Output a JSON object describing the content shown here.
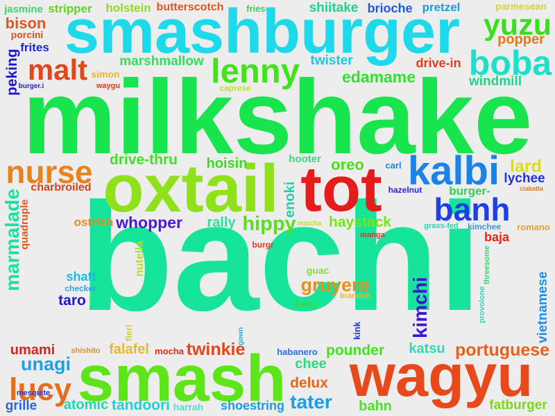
{
  "words": [
    {
      "text": "bachi",
      "color": "#16e49a",
      "orientation": "horizontal"
    },
    {
      "text": "milkshake",
      "color": "#18e44e",
      "orientation": "horizontal"
    },
    {
      "text": "smashburger",
      "color": "#1dd9ea",
      "orientation": "horizontal"
    },
    {
      "text": "oxtail",
      "color": "#8fe11c",
      "orientation": "horizontal"
    },
    {
      "text": "tot",
      "color": "#e61b1b",
      "orientation": "horizontal"
    },
    {
      "text": "wagyu",
      "color": "#e8491a",
      "orientation": "horizontal"
    },
    {
      "text": "smash",
      "color": "#5de51a",
      "orientation": "horizontal"
    },
    {
      "text": "kalbi",
      "color": "#1b82e8",
      "orientation": "horizontal"
    },
    {
      "text": "banh",
      "color": "#1f3ee6",
      "orientation": "horizontal"
    },
    {
      "text": "lenny",
      "color": "#3fe41a",
      "orientation": "horizontal"
    },
    {
      "text": "malt",
      "color": "#e4451b",
      "orientation": "horizontal"
    },
    {
      "text": "nurse",
      "color": "#e6841c",
      "orientation": "horizontal"
    },
    {
      "text": "boba",
      "color": "#1ce0c9",
      "orientation": "horizontal"
    },
    {
      "text": "yuzu",
      "color": "#3cdd21",
      "orientation": "horizontal"
    },
    {
      "text": "lucy",
      "color": "#e66d19",
      "orientation": "horizontal"
    },
    {
      "text": "edamame",
      "color": "#2ee42a",
      "orientation": "horizontal"
    },
    {
      "text": "whopper",
      "color": "#4b18d8",
      "orientation": "horizontal"
    },
    {
      "text": "hippy",
      "color": "#57e01b",
      "orientation": "horizontal"
    },
    {
      "text": "haystack",
      "color": "#78e41c",
      "orientation": "horizontal"
    },
    {
      "text": "gruyere",
      "color": "#e6901c",
      "orientation": "horizontal"
    },
    {
      "text": "marmalade",
      "color": "#1be0a3",
      "orientation": "vertical"
    },
    {
      "text": "twinkie",
      "color": "#e4451a",
      "orientation": "horizontal"
    },
    {
      "text": "unagi",
      "color": "#1ba1e6",
      "orientation": "horizontal"
    },
    {
      "text": "portuguese",
      "color": "#e6611a",
      "orientation": "horizontal"
    },
    {
      "text": "vietnamese",
      "color": "#1e8ee4",
      "orientation": "vertical"
    },
    {
      "text": "kimchi",
      "color": "#3a15d6",
      "orientation": "vertical"
    },
    {
      "text": "tater",
      "color": "#1b9ee6",
      "orientation": "horizontal"
    },
    {
      "text": "delux",
      "color": "#e66619",
      "orientation": "horizontal"
    },
    {
      "text": "pounder",
      "color": "#41e21c",
      "orientation": "horizontal"
    },
    {
      "text": "drive-thru",
      "color": "#3ee02a",
      "orientation": "horizontal"
    },
    {
      "text": "windmill",
      "color": "#22d486",
      "orientation": "horizontal"
    },
    {
      "text": "marshmallow",
      "color": "#2ee05a",
      "orientation": "horizontal"
    },
    {
      "text": "drive-in",
      "color": "#e63a1a",
      "orientation": "horizontal"
    },
    {
      "text": "twister",
      "color": "#1bc7d8",
      "orientation": "horizontal"
    },
    {
      "text": "popper",
      "color": "#e8761b",
      "orientation": "horizontal"
    },
    {
      "text": "bison",
      "color": "#e4541b",
      "orientation": "horizontal"
    },
    {
      "text": "frites",
      "color": "#2025d8",
      "orientation": "horizontal"
    },
    {
      "text": "peking",
      "color": "#2514c9",
      "orientation": "vertical"
    },
    {
      "text": "jasmine",
      "color": "#37d86a",
      "orientation": "horizontal"
    },
    {
      "text": "stripper",
      "color": "#5ad71d",
      "orientation": "horizontal"
    },
    {
      "text": "holstein",
      "color": "#93d62a",
      "orientation": "horizontal"
    },
    {
      "text": "butterscotch",
      "color": "#e6521a",
      "orientation": "horizontal"
    },
    {
      "text": "fries-",
      "color": "#2bd65c",
      "orientation": "horizontal"
    },
    {
      "text": "shiitake",
      "color": "#1ed18c",
      "orientation": "horizontal"
    },
    {
      "text": "brioche",
      "color": "#1f59dc",
      "orientation": "horizontal"
    },
    {
      "text": "pretzel",
      "color": "#1e9bd8",
      "orientation": "horizontal"
    },
    {
      "text": "parmesean",
      "color": "#cfd82b",
      "orientation": "horizontal"
    },
    {
      "text": "porcini",
      "color": "#e6491d",
      "orientation": "horizontal"
    },
    {
      "text": "simon",
      "color": "#e9b620",
      "orientation": "horizontal"
    },
    {
      "text": "waygu",
      "color": "#e6381a",
      "orientation": "horizontal"
    },
    {
      "text": "burger.i",
      "color": "#2522cf",
      "orientation": "horizontal"
    },
    {
      "text": "caprese",
      "color": "#b9e02d",
      "orientation": "horizontal"
    },
    {
      "text": "lard",
      "color": "#d8de1c",
      "orientation": "horizontal"
    },
    {
      "text": "lychee",
      "color": "#2530d6",
      "orientation": "horizontal"
    },
    {
      "text": "oreo",
      "color": "#49dc1e",
      "orientation": "horizontal"
    },
    {
      "text": "hoisin",
      "color": "#3ed824",
      "orientation": "horizontal"
    },
    {
      "text": "hooter",
      "color": "#30dc7c",
      "orientation": "horizontal"
    },
    {
      "text": "carl",
      "color": "#1c86e0",
      "orientation": "horizontal"
    },
    {
      "text": "enoki",
      "color": "#26cfa6",
      "orientation": "vertical"
    },
    {
      "text": "hazelnut",
      "color": "#2623c7",
      "orientation": "horizontal"
    },
    {
      "text": "burger-",
      "color": "#2ad34e",
      "orientation": "horizontal"
    },
    {
      "text": "ciabatta",
      "color": "#e2782a",
      "orientation": "horizontal"
    },
    {
      "text": "charbroiled",
      "color": "#e03a1a",
      "orientation": "horizontal"
    },
    {
      "text": "quadruple",
      "color": "#e6551e",
      "orientation": "vertical"
    },
    {
      "text": "ostrich",
      "color": "#e88a21",
      "orientation": "horizontal"
    },
    {
      "text": "rally",
      "color": "#2ee09e",
      "orientation": "horizontal"
    },
    {
      "text": "matcha",
      "color": "#c1e02d",
      "orientation": "horizontal"
    },
    {
      "text": "grass-fed",
      "color": "#22d7b8",
      "orientation": "horizontal"
    },
    {
      "text": "kimchee",
      "color": "#2ba0d3",
      "orientation": "horizontal"
    },
    {
      "text": "romano",
      "color": "#e8a031",
      "orientation": "horizontal"
    },
    {
      "text": "manga",
      "color": "#e1342a",
      "orientation": "horizontal"
    },
    {
      "text": "baja",
      "color": "#e6241b",
      "orientation": "horizontal"
    },
    {
      "text": "burgr",
      "color": "#e4371c",
      "orientation": "horizontal"
    },
    {
      "text": "nutella",
      "color": "#b1de2a",
      "orientation": "vertical"
    },
    {
      "text": "shaft",
      "color": "#1ebbe0",
      "orientation": "horizontal"
    },
    {
      "text": "checker",
      "color": "#2ba3e6",
      "orientation": "horizontal"
    },
    {
      "text": "taro",
      "color": "#2219c7",
      "orientation": "horizontal"
    },
    {
      "text": "guac",
      "color": "#8bd83a",
      "orientation": "horizontal"
    },
    {
      "text": "brandon",
      "color": "#e8b636",
      "orientation": "horizontal"
    },
    {
      "text": "kerry",
      "color": "#4cd42a",
      "orientation": "horizontal"
    },
    {
      "text": "provolone",
      "color": "#36d6b2",
      "orientation": "vertical"
    },
    {
      "text": "threesome",
      "color": "#38d46c",
      "orientation": "vertical"
    },
    {
      "text": "fieri",
      "color": "#d6cf34",
      "orientation": "vertical"
    },
    {
      "text": "gown",
      "color": "#2fa8e0",
      "orientation": "vertical"
    },
    {
      "text": "kink",
      "color": "#2434c6",
      "orientation": "vertical"
    },
    {
      "text": "umami",
      "color": "#e01f1a",
      "orientation": "horizontal"
    },
    {
      "text": "shishito",
      "color": "#e98c27",
      "orientation": "horizontal"
    },
    {
      "text": "falafel",
      "color": "#e8b830",
      "orientation": "horizontal"
    },
    {
      "text": "mocha",
      "color": "#e3251b",
      "orientation": "horizontal"
    },
    {
      "text": "habanero",
      "color": "#2a6fe0",
      "orientation": "horizontal"
    },
    {
      "text": "chee",
      "color": "#2fd884",
      "orientation": "horizontal"
    },
    {
      "text": "katsu",
      "color": "#2ed8b4",
      "orientation": "horizontal"
    },
    {
      "text": "mesquite",
      "color": "#2a35cf",
      "orientation": "horizontal"
    },
    {
      "text": "grille",
      "color": "#2b63da",
      "orientation": "horizontal"
    },
    {
      "text": "atomic",
      "color": "#22d6b4",
      "orientation": "horizontal"
    },
    {
      "text": "tandoori",
      "color": "#21cfd6",
      "orientation": "horizontal"
    },
    {
      "text": "harrah",
      "color": "#56dbd0",
      "orientation": "horizontal"
    },
    {
      "text": "shoestring",
      "color": "#1c9be2",
      "orientation": "horizontal"
    },
    {
      "text": "bahn",
      "color": "#4ee02c",
      "orientation": "horizontal"
    },
    {
      "text": "fatburger",
      "color": "#7ad81e",
      "orientation": "horizontal"
    }
  ]
}
